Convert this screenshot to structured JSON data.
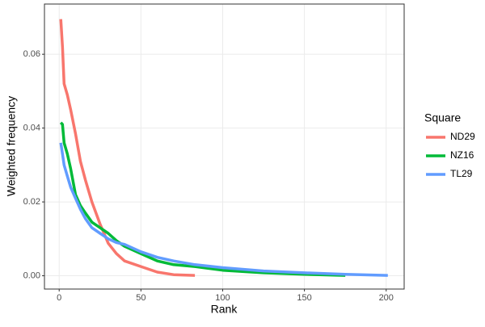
{
  "chart_data": {
    "type": "line",
    "x_label": "Rank",
    "y_label": "Weighted frequency",
    "legend_title": "Square",
    "legend": "right",
    "x": [
      1,
      2,
      3,
      5,
      7,
      10,
      13,
      16,
      20,
      25,
      30,
      35,
      40,
      50,
      60,
      70,
      83,
      100,
      125,
      150,
      175,
      201
    ],
    "series": [
      {
        "name": "ND29",
        "color": "#F8766D",
        "values": [
          0.0695,
          0.062,
          0.052,
          0.049,
          0.045,
          0.0385,
          0.031,
          0.026,
          0.02,
          0.014,
          0.0088,
          0.006,
          0.004,
          0.0025,
          0.001,
          0.0003,
          0.0001,
          null,
          null,
          null,
          null,
          null
        ]
      },
      {
        "name": "NZ16",
        "color": "#00BA38",
        "values": [
          0.0415,
          0.041,
          0.036,
          0.033,
          0.029,
          0.022,
          0.019,
          0.017,
          0.0145,
          0.013,
          0.0115,
          0.0095,
          0.008,
          0.006,
          0.004,
          0.003,
          0.0025,
          0.0015,
          0.0008,
          0.0004,
          0.0001,
          null
        ]
      },
      {
        "name": "TL29",
        "color": "#619CFF",
        "values": [
          0.036,
          0.033,
          0.03,
          0.027,
          0.024,
          0.021,
          0.018,
          0.0155,
          0.013,
          0.0115,
          0.01,
          0.009,
          0.0085,
          0.0065,
          0.005,
          0.004,
          0.003,
          0.0022,
          0.0013,
          0.0008,
          0.0004,
          0.0001
        ]
      }
    ],
    "xlim": [
      -9,
      211
    ],
    "xticks": [
      0,
      50,
      100,
      150,
      200
    ],
    "ylim": [
      -0.0036,
      0.0736
    ],
    "yticks": [
      {
        "value": 0,
        "label": "0.00"
      },
      {
        "value": 0.02,
        "label": "0.02"
      },
      {
        "value": 0.04,
        "label": "0.04"
      },
      {
        "value": 0.06,
        "label": "0.06"
      }
    ],
    "grid": true
  }
}
